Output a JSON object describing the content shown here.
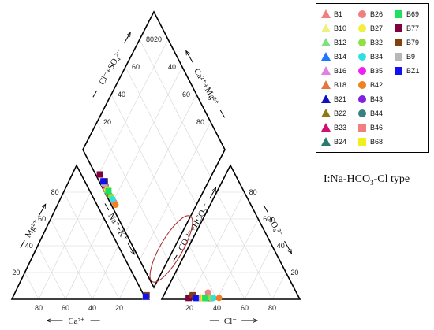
{
  "chart_data": {
    "type": "scatter",
    "subtype": "piper-trilinear",
    "type_label": {
      "prefix": "I:Na-HCO",
      "sub": "3",
      "suffix": "-Cl type"
    },
    "axes": {
      "cation": {
        "bottom": "Ca²⁺",
        "left": "Mg²⁺",
        "right": "Na⁺+K⁺",
        "ticks": [
          20,
          40,
          60,
          80
        ]
      },
      "anion": {
        "bottom": "Cl⁻",
        "left": "CO₃²⁻+HCO₃⁻",
        "right": "SO₄²⁻",
        "ticks": [
          20,
          40,
          60,
          80
        ]
      },
      "diamond": {
        "upper_left": "Cl⁻+SO₄²⁻",
        "upper_right": "Ca²⁺+Mg²⁺",
        "ticks": [
          20,
          40,
          60,
          80
        ]
      }
    },
    "legend_placement": "top-right",
    "series": [
      {
        "name": "B1",
        "color": "#f08080",
        "marker": "triangle",
        "cation": {
          "Mg": 2,
          "Ca": 1
        },
        "anion": {
          "SO4": 1,
          "Cl": 29
        }
      },
      {
        "name": "B10",
        "color": "#f0f080",
        "marker": "triangle",
        "cation": {
          "Mg": 2,
          "Ca": 1
        },
        "anion": {
          "SO4": 1,
          "Cl": 30
        }
      },
      {
        "name": "B12",
        "color": "#80e080",
        "marker": "triangle",
        "cation": {
          "Mg": 2,
          "Ca": 1
        },
        "anion": {
          "SO4": 1,
          "Cl": 31
        }
      },
      {
        "name": "B14",
        "color": "#1e78ff",
        "marker": "triangle",
        "cation": {
          "Mg": 2,
          "Ca": 1
        },
        "anion": {
          "SO4": 1,
          "Cl": 32
        }
      },
      {
        "name": "B16",
        "color": "#e080e0",
        "marker": "triangle",
        "cation": {
          "Mg": 2,
          "Ca": 1
        },
        "anion": {
          "SO4": 1,
          "Cl": 33
        }
      },
      {
        "name": "B18",
        "color": "#e07840",
        "marker": "triangle",
        "cation": {
          "Mg": 2,
          "Ca": 1
        },
        "anion": {
          "SO4": 1,
          "Cl": 33
        }
      },
      {
        "name": "B21",
        "color": "#1010c0",
        "marker": "triangle",
        "cation": {
          "Mg": 2,
          "Ca": 1
        },
        "anion": {
          "SO4": 1,
          "Cl": 34
        }
      },
      {
        "name": "B22",
        "color": "#8a7a10",
        "marker": "triangle",
        "cation": {
          "Mg": 2,
          "Ca": 1
        },
        "anion": {
          "SO4": 1,
          "Cl": 34
        }
      },
      {
        "name": "B23",
        "color": "#d01070",
        "marker": "triangle",
        "cation": {
          "Mg": 2,
          "Ca": 1
        },
        "anion": {
          "SO4": 1,
          "Cl": 35
        }
      },
      {
        "name": "B24",
        "color": "#2a7a70",
        "marker": "triangle",
        "cation": {
          "Mg": 2,
          "Ca": 1
        },
        "anion": {
          "SO4": 1,
          "Cl": 35
        }
      },
      {
        "name": "B26",
        "color": "#f08080",
        "marker": "circle",
        "cation": {
          "Mg": 2,
          "Ca": 1
        },
        "anion": {
          "SO4": 5,
          "Cl": 36
        }
      },
      {
        "name": "B27",
        "color": "#f0f040",
        "marker": "circle",
        "cation": {
          "Mg": 2,
          "Ca": 1
        },
        "anion": {
          "SO4": 1,
          "Cl": 36
        }
      },
      {
        "name": "B32",
        "color": "#90e040",
        "marker": "circle",
        "cation": {
          "Mg": 2,
          "Ca": 1
        },
        "anion": {
          "SO4": 1,
          "Cl": 36
        }
      },
      {
        "name": "B34",
        "color": "#30e0e0",
        "marker": "circle",
        "cation": {
          "Mg": 2,
          "Ca": 1
        },
        "anion": {
          "SO4": 1,
          "Cl": 38
        }
      },
      {
        "name": "B35",
        "color": "#f020f0",
        "marker": "circle",
        "cation": {
          "Mg": 2,
          "Ca": 1
        },
        "anion": {
          "SO4": 1,
          "Cl": 31
        }
      },
      {
        "name": "B42",
        "color": "#f08020",
        "marker": "circle",
        "cation": {
          "Mg": 2,
          "Ca": 1
        },
        "anion": {
          "SO4": 1,
          "Cl": 42
        }
      },
      {
        "name": "B43",
        "color": "#8020e0",
        "marker": "circle",
        "cation": {
          "Mg": 2,
          "Ca": 1
        },
        "anion": {
          "SO4": 1,
          "Cl": 28
        }
      },
      {
        "name": "B44",
        "color": "#3a8080",
        "marker": "circle",
        "cation": {
          "Mg": 2,
          "Ca": 1
        },
        "anion": {
          "SO4": 3,
          "Cl": 23
        }
      },
      {
        "name": "B46",
        "color": "#f08080",
        "marker": "square",
        "cation": {
          "Mg": 2,
          "Ca": 1
        },
        "anion": {
          "SO4": 1,
          "Cl": 27
        }
      },
      {
        "name": "B68",
        "color": "#f0f020",
        "marker": "square",
        "cation": {
          "Mg": 2,
          "Ca": 1
        },
        "anion": {
          "SO4": 1,
          "Cl": 31
        }
      },
      {
        "name": "B69",
        "color": "#20e060",
        "marker": "square",
        "cation": {
          "Mg": 2,
          "Ca": 1
        },
        "anion": {
          "SO4": 1,
          "Cl": 32
        }
      },
      {
        "name": "B77",
        "color": "#800040",
        "marker": "square",
        "cation": {
          "Mg": 2,
          "Ca": 1
        },
        "anion": {
          "SO4": 1,
          "Cl": 20
        }
      },
      {
        "name": "B79",
        "color": "#804010",
        "marker": "square",
        "cation": {
          "Mg": 3,
          "Ca": 1
        },
        "anion": {
          "SO4": 3,
          "Cl": 24
        }
      },
      {
        "name": "B9",
        "color": "#b8b8b8",
        "marker": "square",
        "cation": {
          "Mg": 2,
          "Ca": 1
        },
        "anion": {
          "SO4": 1,
          "Cl": 26
        }
      },
      {
        "name": "BZ1",
        "color": "#1010f0",
        "marker": "square",
        "cation": {
          "Mg": 2,
          "Ca": 1
        },
        "anion": {
          "SO4": 1,
          "Cl": 25
        }
      }
    ],
    "cluster_ellipse": {
      "color": "#b03030",
      "label": "I"
    }
  }
}
